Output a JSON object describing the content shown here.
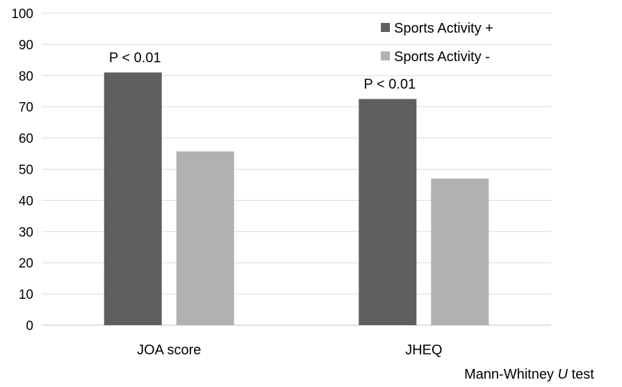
{
  "chart_data": {
    "type": "bar",
    "categories": [
      "JOA score",
      "JHEQ"
    ],
    "series": [
      {
        "name": "Sports Activity +",
        "values": [
          81,
          72.5
        ],
        "color": "#5f5f5f"
      },
      {
        "name": "Sports Activity -",
        "values": [
          55.7,
          47
        ],
        "color": "#b1b1b1"
      }
    ],
    "ylim": [
      0,
      100
    ],
    "yticks": [
      0,
      10,
      20,
      30,
      40,
      50,
      60,
      70,
      80,
      90,
      100
    ],
    "grid": true,
    "legend": "top-right",
    "annotations": [
      "P < 0.01",
      "P < 0.01"
    ],
    "footnote": {
      "prefix": "Mann-Whitney ",
      "italic": "U",
      "suffix": " test"
    }
  }
}
